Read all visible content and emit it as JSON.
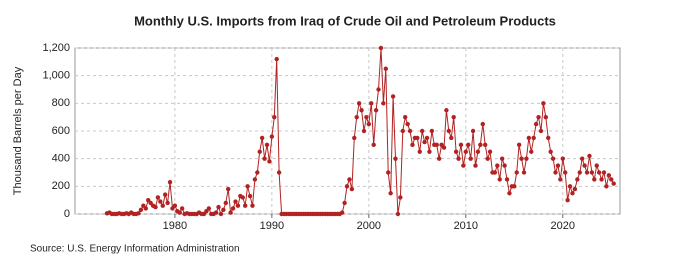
{
  "chart_data": {
    "type": "line",
    "title": "Monthly U.S. Imports from Iraq of Crude Oil and Petroleum Products",
    "y_label": "Thousand Barrels per Day",
    "source": "Source: U.S. Energy Information Administration",
    "color": "#b22222",
    "grid": true,
    "xlim": [
      1969.7,
      2025.9
    ],
    "xticks": [
      1980,
      1990,
      2000,
      2010,
      2020
    ],
    "ylim": [
      0,
      1200
    ],
    "yticks": [
      0,
      200,
      400,
      600,
      800,
      {
        "value": 1000,
        "label": "1,000"
      },
      {
        "value": 1200,
        "label": "1,200"
      }
    ],
    "x": [
      1973,
      1973.25,
      1973.5,
      1973.75,
      1974,
      1974.25,
      1974.5,
      1974.75,
      1975,
      1975.25,
      1975.5,
      1975.75,
      1976,
      1976.25,
      1976.5,
      1976.75,
      1977,
      1977.25,
      1977.5,
      1977.75,
      1978,
      1978.25,
      1978.5,
      1978.75,
      1979,
      1979.25,
      1979.5,
      1979.75,
      1980,
      1980.25,
      1980.5,
      1980.75,
      1981,
      1981.25,
      1981.5,
      1981.75,
      1982,
      1982.25,
      1982.5,
      1982.75,
      1983,
      1983.25,
      1983.5,
      1983.75,
      1984,
      1984.25,
      1984.5,
      1984.75,
      1985,
      1985.25,
      1985.5,
      1985.75,
      1986,
      1986.25,
      1986.5,
      1986.75,
      1987,
      1987.25,
      1987.5,
      1987.75,
      1988,
      1988.25,
      1988.5,
      1988.75,
      1989,
      1989.25,
      1989.5,
      1989.75,
      1990,
      1990.25,
      1990.5,
      1990.75,
      1991,
      1991.25,
      1991.5,
      1991.75,
      1992,
      1992.25,
      1992.5,
      1992.75,
      1993,
      1993.25,
      1993.5,
      1993.75,
      1994,
      1994.25,
      1994.5,
      1994.75,
      1995,
      1995.25,
      1995.5,
      1995.75,
      1996,
      1996.25,
      1996.5,
      1996.75,
      1997,
      1997.25,
      1997.5,
      1997.75,
      1998,
      1998.25,
      1998.5,
      1998.75,
      1999,
      1999.25,
      1999.5,
      1999.75,
      2000,
      2000.25,
      2000.5,
      2000.75,
      2001,
      2001.25,
      2001.5,
      2001.75,
      2002,
      2002.25,
      2002.5,
      2002.75,
      2003,
      2003.25,
      2003.5,
      2003.75,
      2004,
      2004.25,
      2004.5,
      2004.75,
      2005,
      2005.25,
      2005.5,
      2005.75,
      2006,
      2006.25,
      2006.5,
      2006.75,
      2007,
      2007.25,
      2007.5,
      2007.75,
      2008,
      2008.25,
      2008.5,
      2008.75,
      2009,
      2009.25,
      2009.5,
      2009.75,
      2010,
      2010.25,
      2010.5,
      2010.75,
      2011,
      2011.25,
      2011.5,
      2011.75,
      2012,
      2012.25,
      2012.5,
      2012.75,
      2013,
      2013.25,
      2013.5,
      2013.75,
      2014,
      2014.25,
      2014.5,
      2014.75,
      2015,
      2015.25,
      2015.5,
      2015.75,
      2016,
      2016.25,
      2016.5,
      2016.75,
      2017,
      2017.25,
      2017.5,
      2017.75,
      2018,
      2018.25,
      2018.5,
      2018.75,
      2019,
      2019.25,
      2019.5,
      2019.75,
      2020,
      2020.25,
      2020.5,
      2020.75,
      2021,
      2021.25,
      2021.5,
      2021.75,
      2022,
      2022.25,
      2022.5,
      2022.75,
      2023,
      2023.25,
      2023.5,
      2023.75,
      2024,
      2024.25,
      2024.5,
      2024.75,
      2025,
      2025.25
    ],
    "values": [
      5,
      10,
      0,
      0,
      0,
      5,
      0,
      0,
      5,
      0,
      10,
      0,
      0,
      5,
      30,
      60,
      40,
      100,
      80,
      60,
      50,
      120,
      90,
      60,
      140,
      80,
      230,
      40,
      60,
      20,
      10,
      40,
      0,
      5,
      0,
      0,
      0,
      0,
      10,
      0,
      0,
      20,
      40,
      0,
      0,
      10,
      50,
      0,
      30,
      80,
      180,
      10,
      40,
      90,
      60,
      130,
      120,
      60,
      200,
      130,
      60,
      250,
      300,
      450,
      550,
      400,
      500,
      380,
      560,
      700,
      1120,
      300,
      0,
      0,
      0,
      0,
      0,
      0,
      0,
      0,
      0,
      0,
      0,
      0,
      0,
      0,
      0,
      0,
      0,
      0,
      0,
      0,
      0,
      0,
      0,
      0,
      0,
      10,
      80,
      200,
      250,
      180,
      550,
      700,
      800,
      750,
      600,
      700,
      650,
      800,
      500,
      750,
      900,
      1200,
      800,
      1050,
      300,
      150,
      850,
      400,
      0,
      120,
      600,
      700,
      650,
      600,
      500,
      550,
      550,
      450,
      600,
      520,
      550,
      450,
      600,
      500,
      500,
      400,
      500,
      480,
      750,
      600,
      550,
      700,
      450,
      400,
      500,
      350,
      450,
      500,
      400,
      600,
      350,
      450,
      500,
      650,
      500,
      400,
      450,
      300,
      300,
      350,
      250,
      400,
      350,
      250,
      150,
      200,
      200,
      300,
      500,
      400,
      300,
      400,
      550,
      450,
      550,
      650,
      700,
      600,
      800,
      700,
      550,
      450,
      400,
      300,
      350,
      250,
      400,
      300,
      100,
      200,
      150,
      180,
      250,
      300,
      400,
      350,
      300,
      420,
      300,
      250,
      350,
      300,
      250,
      300,
      200,
      280,
      250,
      220
    ]
  }
}
